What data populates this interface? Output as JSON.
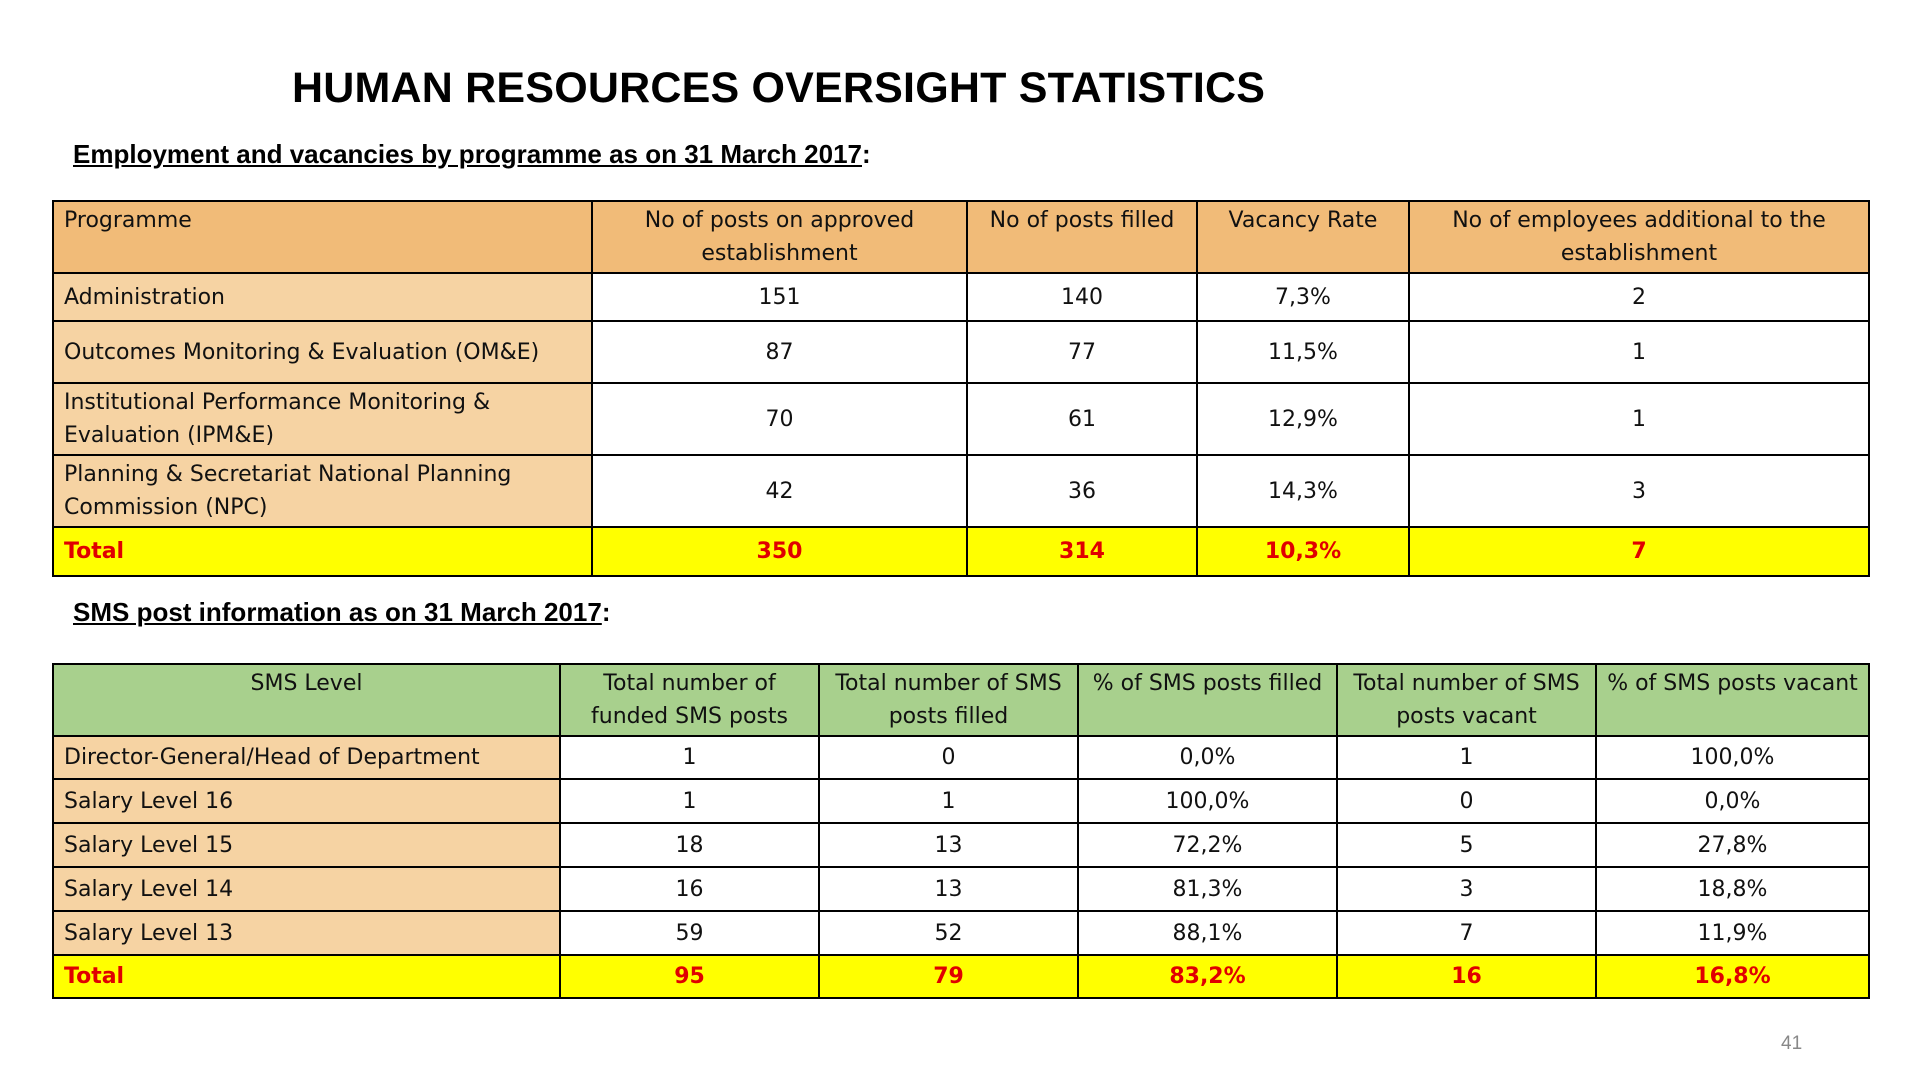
{
  "title": "HUMAN RESOURCES OVERSIGHT STATISTICS",
  "employment": {
    "heading": "Employment and vacancies by programme as on 31 March 2017",
    "heading_suffix": ":",
    "headers": [
      "Programme",
      "No of posts on approved establishment",
      "No of posts filled",
      "Vacancy Rate",
      "No of employees additional to the establishment"
    ],
    "rows": [
      [
        "Administration",
        "151",
        "140",
        "7,3%",
        "2"
      ],
      [
        "Outcomes Monitoring & Evaluation (OM&E)",
        "87",
        "77",
        "11,5%",
        "1"
      ],
      [
        "Institutional Performance Monitoring & Evaluation (IPM&E)",
        "70",
        "61",
        "12,9%",
        "1"
      ],
      [
        "Planning & Secretariat National Planning Commission (NPC)",
        "42",
        "36",
        "14,3%",
        "3"
      ]
    ],
    "total": [
      "Total",
      "350",
      "314",
      "10,3%",
      "7"
    ]
  },
  "sms": {
    "heading": "SMS post information as on 31 March 2017",
    "heading_suffix": ":",
    "headers": [
      "SMS Level",
      "Total number of funded SMS posts",
      "Total number of SMS posts filled",
      "% of SMS posts filled",
      "Total number of SMS posts vacant",
      "% of SMS posts vacant"
    ],
    "rows": [
      [
        "Director-General/Head of Department",
        "1",
        "0",
        "0,0%",
        "1",
        "100,0%"
      ],
      [
        "Salary Level 16",
        "1",
        "1",
        "100,0%",
        "0",
        "0,0%"
      ],
      [
        "Salary Level 15",
        "18",
        "13",
        "72,2%",
        "5",
        "27,8%"
      ],
      [
        "Salary Level 14",
        "16",
        "13",
        "81,3%",
        "3",
        "18,8%"
      ],
      [
        "Salary Level 13",
        "59",
        "52",
        "88,1%",
        "7",
        "11,9%"
      ]
    ],
    "total": [
      "Total",
      "95",
      "79",
      "83,2%",
      "16",
      "16,8%"
    ]
  },
  "page_number": "41",
  "colors": {
    "table1_header": "#f1bb78",
    "label_cell": "#f6d3a3",
    "table2_header": "#a8d08d",
    "total_row": "#ffff00",
    "total_text": "#e00000"
  }
}
